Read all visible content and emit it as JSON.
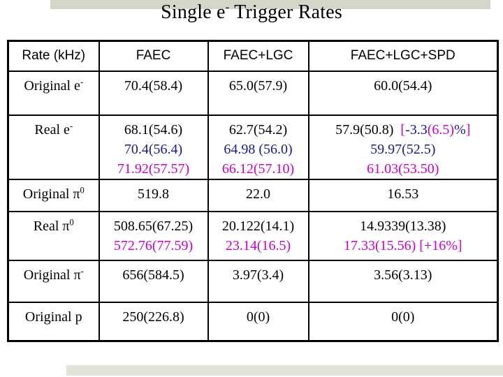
{
  "title": {
    "pre": "Single e",
    "sup": "-",
    "post": " Trigger Rates"
  },
  "colors": {
    "black": "#000000",
    "navy": "#1a1a85",
    "magenta": "#cc00cc",
    "top_bar": "#d3d6c8",
    "bottom_bar": "#e1e3d9"
  },
  "table": {
    "headers": [
      "Rate (kHz)",
      "FAEC",
      "FAEC+LGC",
      "FAEC+LGC+SPD"
    ],
    "rows": [
      {
        "label": [
          {
            "t": "Original e"
          },
          {
            "t": "-",
            "sup": true
          }
        ],
        "cells": [
          [
            [
              {
                "t": "70.4(58.4)"
              }
            ]
          ],
          [
            [
              {
                "t": "65.0(57.9)"
              }
            ]
          ],
          [
            [
              {
                "t": "60.0(54.4)"
              }
            ]
          ]
        ]
      },
      {
        "label": [
          {
            "t": "Real e"
          },
          {
            "t": "-",
            "sup": true
          }
        ],
        "cells": [
          [
            [
              {
                "t": "68.1(54.6)"
              }
            ],
            [
              {
                "t": "70.4(56.4)",
                "c": "navy"
              }
            ],
            [
              {
                "t": "71.92(57.57)",
                "c": "magenta"
              }
            ]
          ],
          [
            [
              {
                "t": "62.7(54.2)"
              }
            ],
            [
              {
                "t": "64.98 (56.0)",
                "c": "navy"
              }
            ],
            [
              {
                "t": "66.12(57.10)",
                "c": "magenta"
              }
            ]
          ],
          [
            [
              {
                "t": "57.9(50.8)  "
              },
              {
                "t": "[",
                "c": "magenta"
              },
              {
                "t": "-3.3",
                "c": "navy"
              },
              {
                "t": "(6.5)",
                "c": "magenta"
              },
              {
                "t": "%",
                "c": "navy"
              },
              {
                "t": "]",
                "c": "magenta"
              }
            ],
            [
              {
                "t": "59.97(52.5)",
                "c": "navy"
              }
            ],
            [
              {
                "t": "61.03(53.50)",
                "c": "magenta"
              }
            ]
          ]
        ]
      },
      {
        "label": [
          {
            "t": "Original π"
          },
          {
            "t": "0",
            "sup": true
          }
        ],
        "cells": [
          [
            [
              {
                "t": "519.8"
              }
            ]
          ],
          [
            [
              {
                "t": "22.0"
              }
            ]
          ],
          [
            [
              {
                "t": "16.53"
              }
            ]
          ]
        ]
      },
      {
        "label": [
          {
            "t": "Real π"
          },
          {
            "t": "0",
            "sup": true
          }
        ],
        "cells": [
          [
            [
              {
                "t": "508.65(67.25)"
              }
            ],
            [
              {
                "t": "572.76(77.59)",
                "c": "magenta"
              }
            ]
          ],
          [
            [
              {
                "t": "20.122(14.1)"
              }
            ],
            [
              {
                "t": "23.14(16.5)",
                "c": "magenta"
              }
            ]
          ],
          [
            [
              {
                "t": "14.9339(13.38)"
              }
            ],
            [
              {
                "t": "17.33(15.56) [+16%]",
                "c": "magenta"
              }
            ]
          ]
        ]
      },
      {
        "label": [
          {
            "t": "Original π"
          },
          {
            "t": "-",
            "sup": true
          }
        ],
        "cells": [
          [
            [
              {
                "t": "656(584.5)"
              }
            ]
          ],
          [
            [
              {
                "t": "3.97(3.4)"
              }
            ]
          ],
          [
            [
              {
                "t": "3.56(3.13)"
              }
            ]
          ]
        ]
      },
      {
        "label": [
          {
            "t": "Original p"
          }
        ],
        "cells": [
          [
            [
              {
                "t": "250(226.8)"
              }
            ]
          ],
          [
            [
              {
                "t": "0(0)"
              }
            ]
          ],
          [
            [
              {
                "t": "0(0)"
              }
            ]
          ]
        ]
      }
    ]
  }
}
